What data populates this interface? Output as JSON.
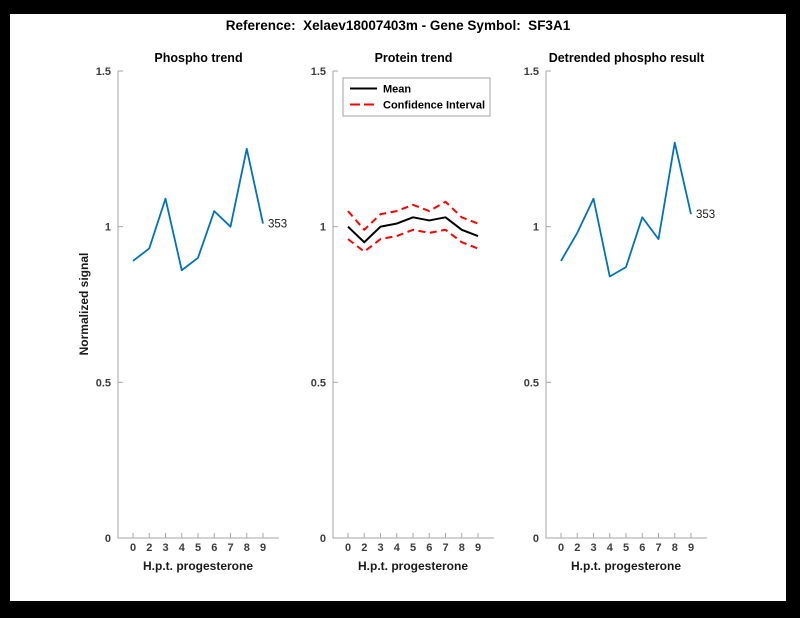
{
  "figure": {
    "title": "Reference:  Xelaev18007403m - Gene Symbol:  SF3A1",
    "background": "#ffffff",
    "frame_color": "#000000",
    "axis_color": "#a6a6a6",
    "tick_label_color": "#3c3c3c"
  },
  "annotation_label": "353",
  "chart_data": [
    {
      "type": "line",
      "title": "Phospho trend",
      "xlabel": "H.p.t. progesterone",
      "ylabel": "Normalized signal",
      "x_tick_labels": [
        "0",
        "2",
        "3",
        "4",
        "5",
        "6",
        "7",
        "8",
        "9"
      ],
      "y_tick_labels": [
        "0",
        "0.5",
        "1",
        "1.5"
      ],
      "y_tick_values": [
        0,
        0.5,
        1,
        1.5
      ],
      "ylim": [
        0,
        1.5
      ],
      "grid": false,
      "legend": null,
      "series": [
        {
          "name": "Phospho",
          "color": "#0072bd",
          "style": "solid",
          "values": [
            0.89,
            0.93,
            1.09,
            0.86,
            0.9,
            1.05,
            1.0,
            1.25,
            1.01
          ]
        }
      ],
      "end_label": "353"
    },
    {
      "type": "line",
      "title": "Protein trend",
      "xlabel": "H.p.t. progesterone",
      "ylabel": "",
      "x_tick_labels": [
        "0",
        "2",
        "3",
        "4",
        "5",
        "6",
        "7",
        "8",
        "9"
      ],
      "y_tick_labels": [
        "0",
        "0.5",
        "1",
        "1.5"
      ],
      "y_tick_values": [
        0,
        0.5,
        1,
        1.5
      ],
      "ylim": [
        0,
        1.5
      ],
      "grid": false,
      "legend": {
        "position": "top-left",
        "entries": [
          "Mean",
          "Confidence Interval"
        ]
      },
      "series": [
        {
          "name": "Mean",
          "color": "#000000",
          "style": "solid",
          "values": [
            1.0,
            0.95,
            1.0,
            1.01,
            1.03,
            1.02,
            1.03,
            0.99,
            0.97
          ]
        },
        {
          "name": "Confidence Interval",
          "color": "#ff0000",
          "style": "dashed",
          "values": [
            1.05,
            0.99,
            1.04,
            1.05,
            1.07,
            1.05,
            1.08,
            1.03,
            1.01
          ]
        },
        {
          "name": "Confidence Interval",
          "color": "#ff0000",
          "style": "dashed",
          "values": [
            0.96,
            0.92,
            0.96,
            0.97,
            0.99,
            0.98,
            0.99,
            0.95,
            0.93
          ]
        }
      ],
      "end_label": null
    },
    {
      "type": "line",
      "title": "Detrended phospho result",
      "xlabel": "H.p.t. progesterone",
      "ylabel": "",
      "x_tick_labels": [
        "0",
        "2",
        "3",
        "4",
        "5",
        "6",
        "7",
        "8",
        "9"
      ],
      "y_tick_labels": [
        "0",
        "0.5",
        "1",
        "1.5"
      ],
      "y_tick_values": [
        0,
        0.5,
        1,
        1.5
      ],
      "ylim": [
        0,
        1.5
      ],
      "grid": false,
      "legend": null,
      "series": [
        {
          "name": "Detrended phospho",
          "color": "#0072bd",
          "style": "solid",
          "values": [
            0.89,
            0.98,
            1.09,
            0.84,
            0.87,
            1.03,
            0.96,
            1.27,
            1.04
          ]
        }
      ],
      "end_label": "353"
    }
  ]
}
